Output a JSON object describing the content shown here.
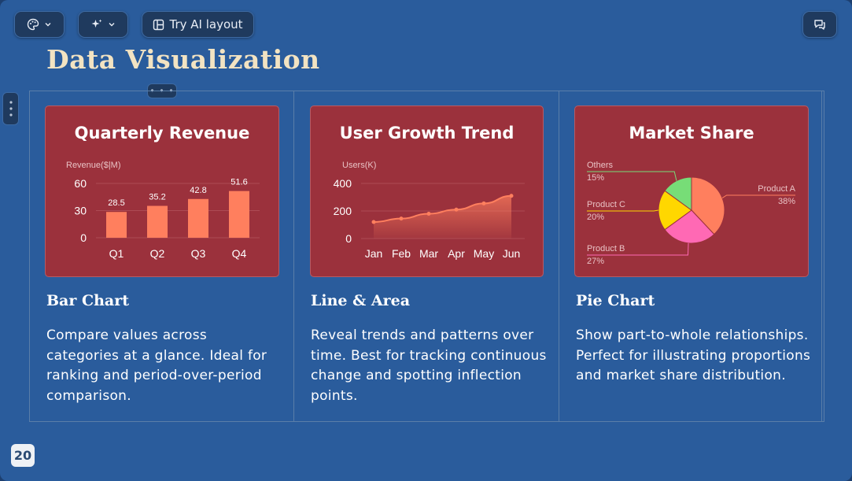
{
  "toolbar": {
    "theme_icon": "palette-icon",
    "ai_icon": "sparkle-icon",
    "ai_layout_label": "Try AI layout",
    "comments_icon": "comments-icon"
  },
  "slide": {
    "title": "Data Visualization",
    "page_number": "20",
    "accent_color": "#f2e3c2",
    "background_color": "#2a5c9c",
    "card_color": "#9b313c"
  },
  "columns": [
    {
      "heading": "Bar Chart",
      "description": "Compare values across categories at a glance. Ideal for ranking and period-over-period comparison."
    },
    {
      "heading": "Line & Area",
      "description": "Reveal trends and patterns over time. Best for tracking continuous change and spotting inflection points."
    },
    {
      "heading": "Pie Chart",
      "description": "Show part-to-whole relationships. Perfect for illustrating proportions and market share distribution."
    }
  ],
  "chart_data": [
    {
      "type": "bar",
      "title": "Quarterly Revenue",
      "ylabel": "Revenue($|M)",
      "categories": [
        "Q1",
        "Q2",
        "Q3",
        "Q4"
      ],
      "values": [
        28.5,
        35.2,
        42.8,
        51.6
      ],
      "yticks": [
        0,
        30,
        60
      ],
      "ylim": [
        0,
        60
      ],
      "color": "#ff7f5e"
    },
    {
      "type": "area",
      "title": "User Growth Trend",
      "ylabel": "Users(K)",
      "categories": [
        "Jan",
        "Feb",
        "Mar",
        "Apr",
        "May",
        "Jun"
      ],
      "values": [
        120,
        145,
        180,
        210,
        255,
        310
      ],
      "yticks": [
        0,
        200,
        400
      ],
      "ylim": [
        0,
        400
      ],
      "color": "#ff7f5e"
    },
    {
      "type": "pie",
      "title": "Market Share",
      "slices": [
        {
          "name": "Product A",
          "value": 38,
          "label": "38%",
          "color": "#ff7f5e"
        },
        {
          "name": "Product B",
          "value": 27,
          "label": "27%",
          "color": "#ff69b4"
        },
        {
          "name": "Product C",
          "value": 20,
          "label": "20%",
          "color": "#ffd700"
        },
        {
          "name": "Others",
          "value": 15,
          "label": "15%",
          "color": "#77dd77"
        }
      ]
    }
  ]
}
